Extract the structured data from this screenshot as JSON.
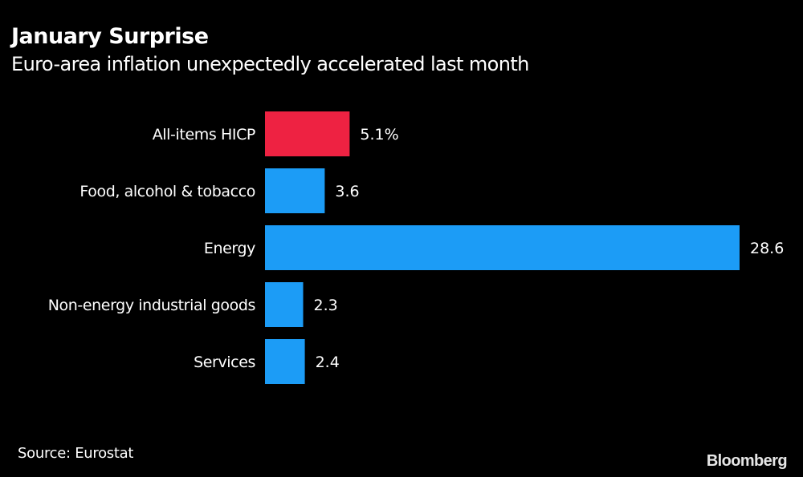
{
  "chart_data": {
    "type": "bar",
    "orientation": "horizontal",
    "title": "January Surprise",
    "subtitle": "Euro-area inflation unexpectedly accelerated last month",
    "categories": [
      "All-items HICP",
      "Food, alcohol & tobacco",
      "Energy",
      "Non-energy industrial goods",
      "Services"
    ],
    "values": [
      5.1,
      3.6,
      28.6,
      2.3,
      2.4
    ],
    "value_labels": [
      "5.1%",
      "3.6",
      "28.6",
      "2.3",
      "2.4"
    ],
    "colors": [
      "#ee2242",
      "#1c9cf6",
      "#1c9cf6",
      "#1c9cf6",
      "#1c9cf6"
    ],
    "xlabel": "",
    "ylabel": "",
    "xlim": [
      0,
      28.6
    ],
    "grid": false,
    "legend": "none"
  },
  "footer": {
    "source": "Source: Eurostat",
    "brand": "Bloomberg"
  }
}
